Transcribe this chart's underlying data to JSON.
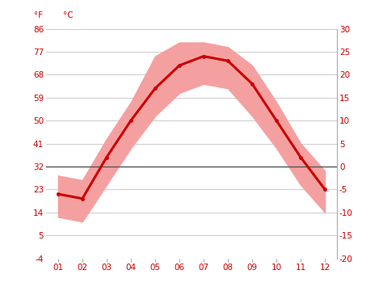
{
  "months": [
    1,
    2,
    3,
    4,
    5,
    6,
    7,
    8,
    9,
    10,
    11,
    12
  ],
  "month_labels": [
    "01",
    "02",
    "03",
    "04",
    "05",
    "06",
    "07",
    "08",
    "09",
    "10",
    "11",
    "12"
  ],
  "mean_temp": [
    -6,
    -7,
    2,
    10,
    17,
    22,
    24,
    23,
    18,
    10,
    2,
    -5
  ],
  "max_temp": [
    -2,
    -3,
    6,
    14,
    24,
    27,
    27,
    26,
    22,
    14,
    5,
    -1
  ],
  "min_temp": [
    -11,
    -12,
    -4,
    4,
    11,
    16,
    18,
    17,
    11,
    4,
    -4,
    -10
  ],
  "celsius_ticks": [
    -20,
    -15,
    -10,
    -5,
    0,
    5,
    10,
    15,
    20,
    25,
    30
  ],
  "fahrenheit_ticks": [
    -4,
    5,
    14,
    23,
    32,
    41,
    50,
    59,
    68,
    77,
    86
  ],
  "ylim": [
    -20,
    30
  ],
  "xlim_left": 0.5,
  "xlim_right": 12.5,
  "line_color": "#cc0000",
  "fill_color": "#f5a0a0",
  "zero_line_color": "#555555",
  "grid_color": "#cccccc",
  "tick_color": "#cc0000",
  "background_color": "#ffffff",
  "label_fF": "°F",
  "label_fC": "°C",
  "line_width": 2.2,
  "marker_size": 3.5,
  "tick_fontsize": 7.5,
  "right_spine_color": "#aaaaaa"
}
